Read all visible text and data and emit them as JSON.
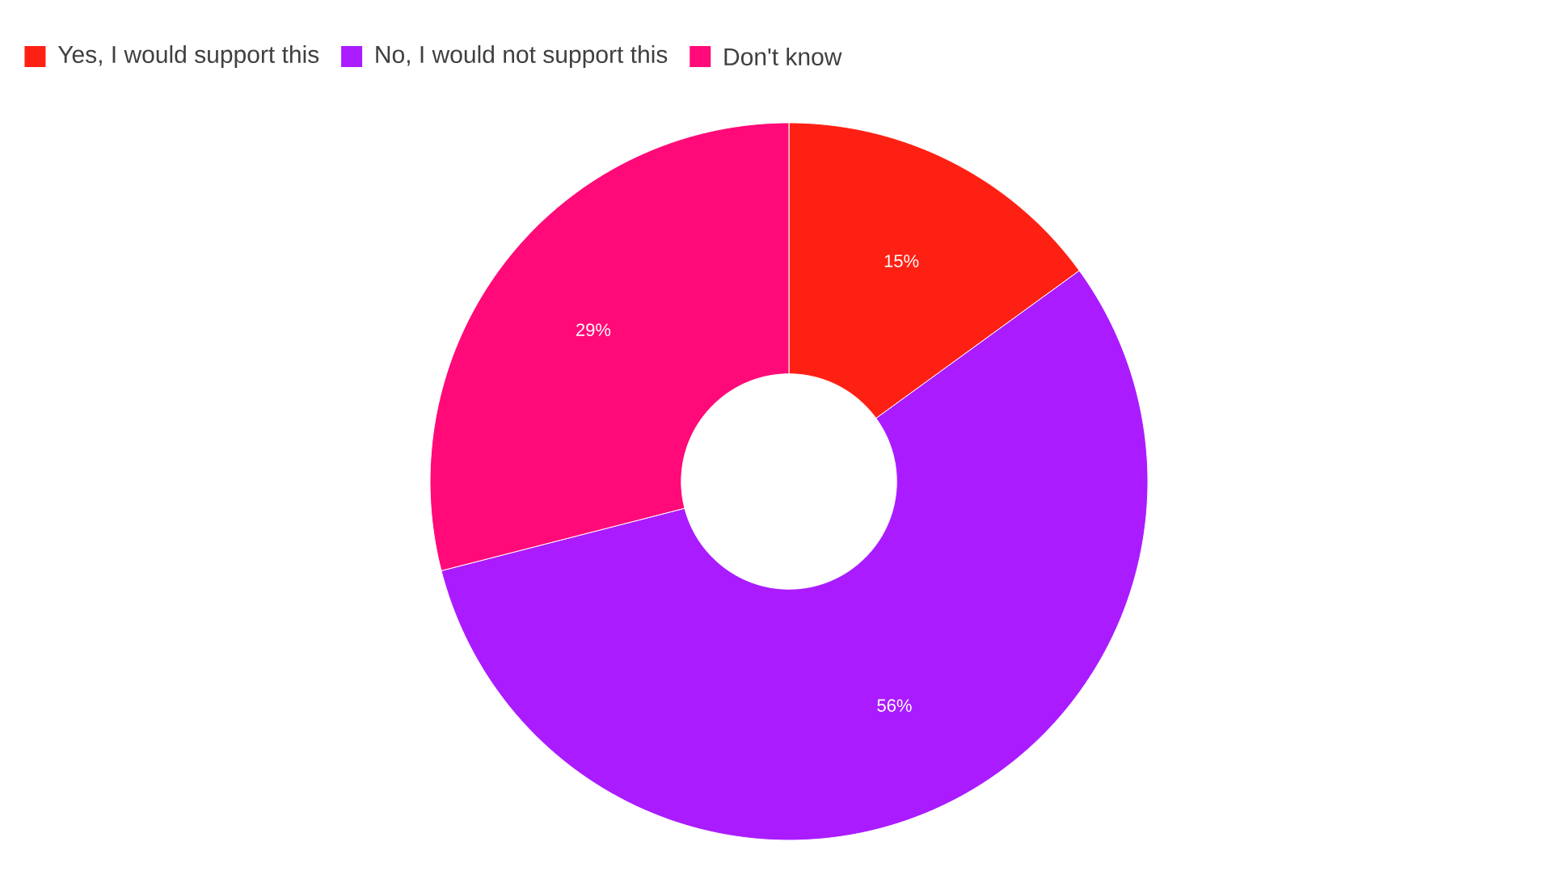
{
  "chart_data": {
    "type": "donut",
    "categories": [
      "Yes, I would support this",
      "No, I would not support this",
      "Don't know"
    ],
    "values": [
      15,
      56,
      29
    ],
    "colors": [
      "#ff2014",
      "#aa1cff",
      "#ff0a78"
    ],
    "value_labels": [
      "15%",
      "56%",
      "29%"
    ],
    "legend": "top left"
  }
}
